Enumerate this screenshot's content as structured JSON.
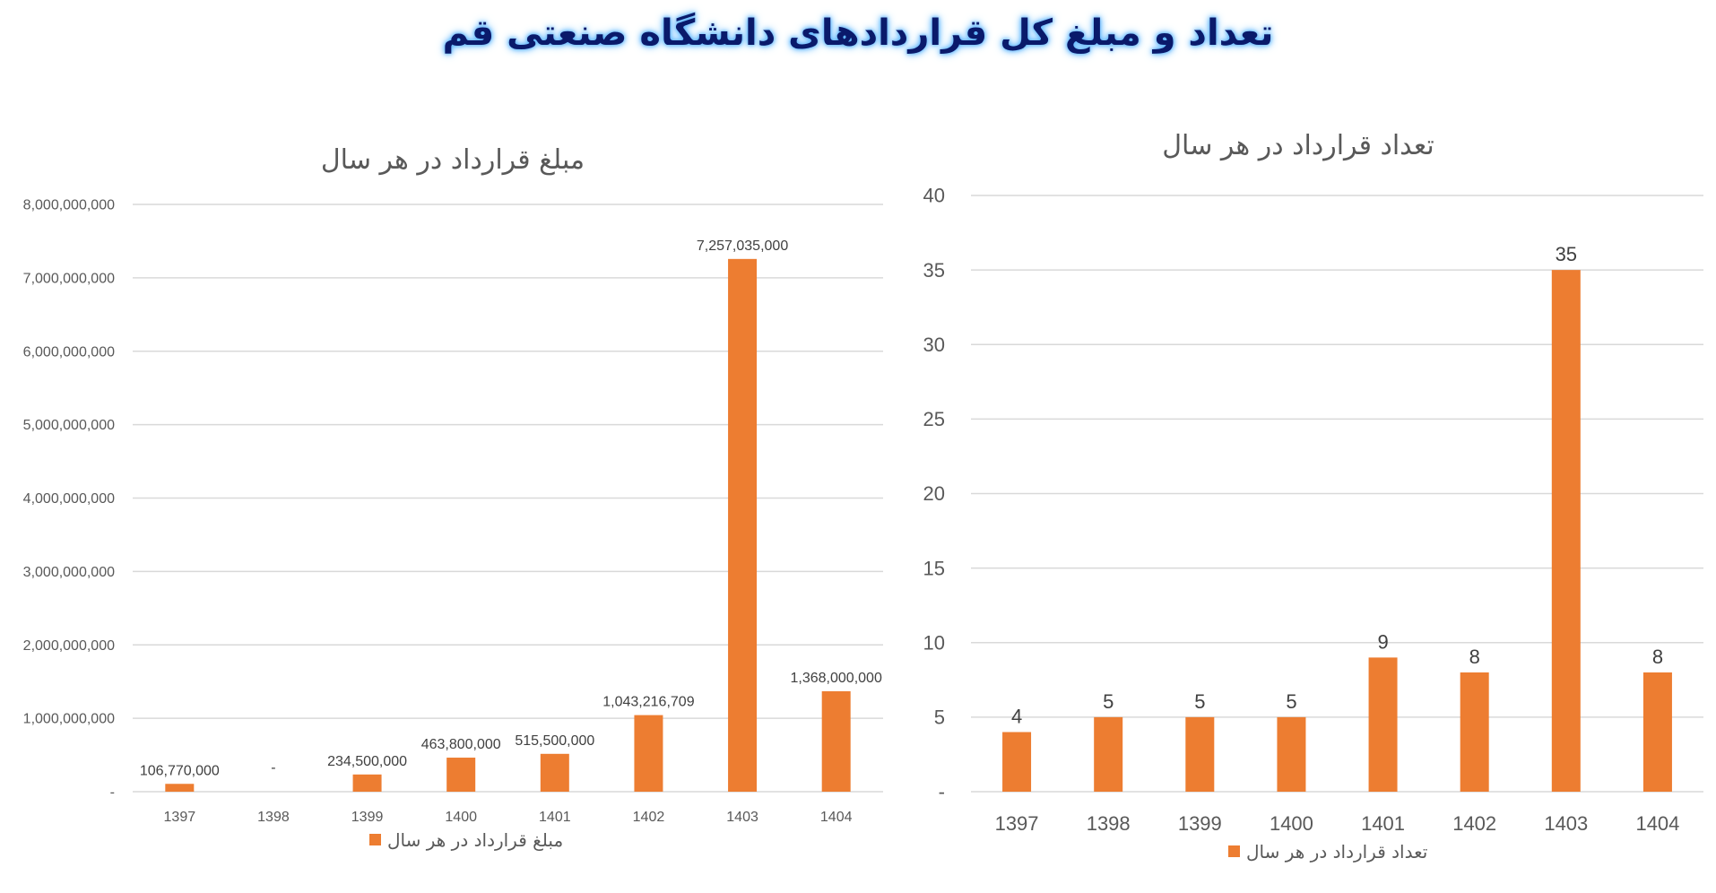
{
  "page": {
    "title": "تعداد و مبلغ کل قراردادهای دانشگاه صنعتی قم"
  },
  "colors": {
    "bar": "#ED7D31",
    "grid": "#D9D9D9",
    "text": "#595959",
    "title": "#0a1a6b",
    "glow": "#5fb7ff"
  },
  "chart_data": [
    {
      "type": "bar",
      "title": "مبلغ قرارداد در هر سال",
      "categories": [
        "1397",
        "1398",
        "1399",
        "1400",
        "1401",
        "1402",
        "1403",
        "1404"
      ],
      "series": [
        {
          "name": "مبلغ قرارداد در هر سال",
          "values": [
            106770000,
            0,
            234500000,
            463800000,
            515500000,
            1043216709,
            7257035000,
            1368000000
          ],
          "labels": [
            "106,770,000",
            "-",
            "234,500,000",
            "463,800,000",
            "515,500,000",
            "1,043,216,709",
            "7,257,035,000",
            "1,368,000,000"
          ]
        }
      ],
      "ylim": [
        0,
        8000000000
      ],
      "yticks": [
        0,
        1000000000,
        2000000000,
        3000000000,
        4000000000,
        5000000000,
        6000000000,
        7000000000,
        8000000000
      ],
      "ytick_labels": [
        "-",
        "1,000,000,000",
        "2,000,000,000",
        "3,000,000,000",
        "4,000,000,000",
        "5,000,000,000",
        "6,000,000,000",
        "7,000,000,000",
        "8,000,000,000"
      ],
      "grid": true,
      "legend": "bottom"
    },
    {
      "type": "bar",
      "title": "تعداد قرارداد در هر سال",
      "categories": [
        "1397",
        "1398",
        "1399",
        "1400",
        "1401",
        "1402",
        "1403",
        "1404"
      ],
      "series": [
        {
          "name": "تعداد قرارداد در هر سال",
          "values": [
            4,
            5,
            5,
            5,
            9,
            8,
            35,
            8
          ],
          "labels": [
            "4",
            "5",
            "5",
            "5",
            "9",
            "8",
            "35",
            "8"
          ]
        }
      ],
      "ylim": [
        0,
        40
      ],
      "yticks": [
        0,
        5,
        10,
        15,
        20,
        25,
        30,
        35,
        40
      ],
      "ytick_labels": [
        "-",
        "5",
        "10",
        "15",
        "20",
        "25",
        "30",
        "35",
        "40"
      ],
      "grid": true,
      "legend": "bottom"
    }
  ]
}
